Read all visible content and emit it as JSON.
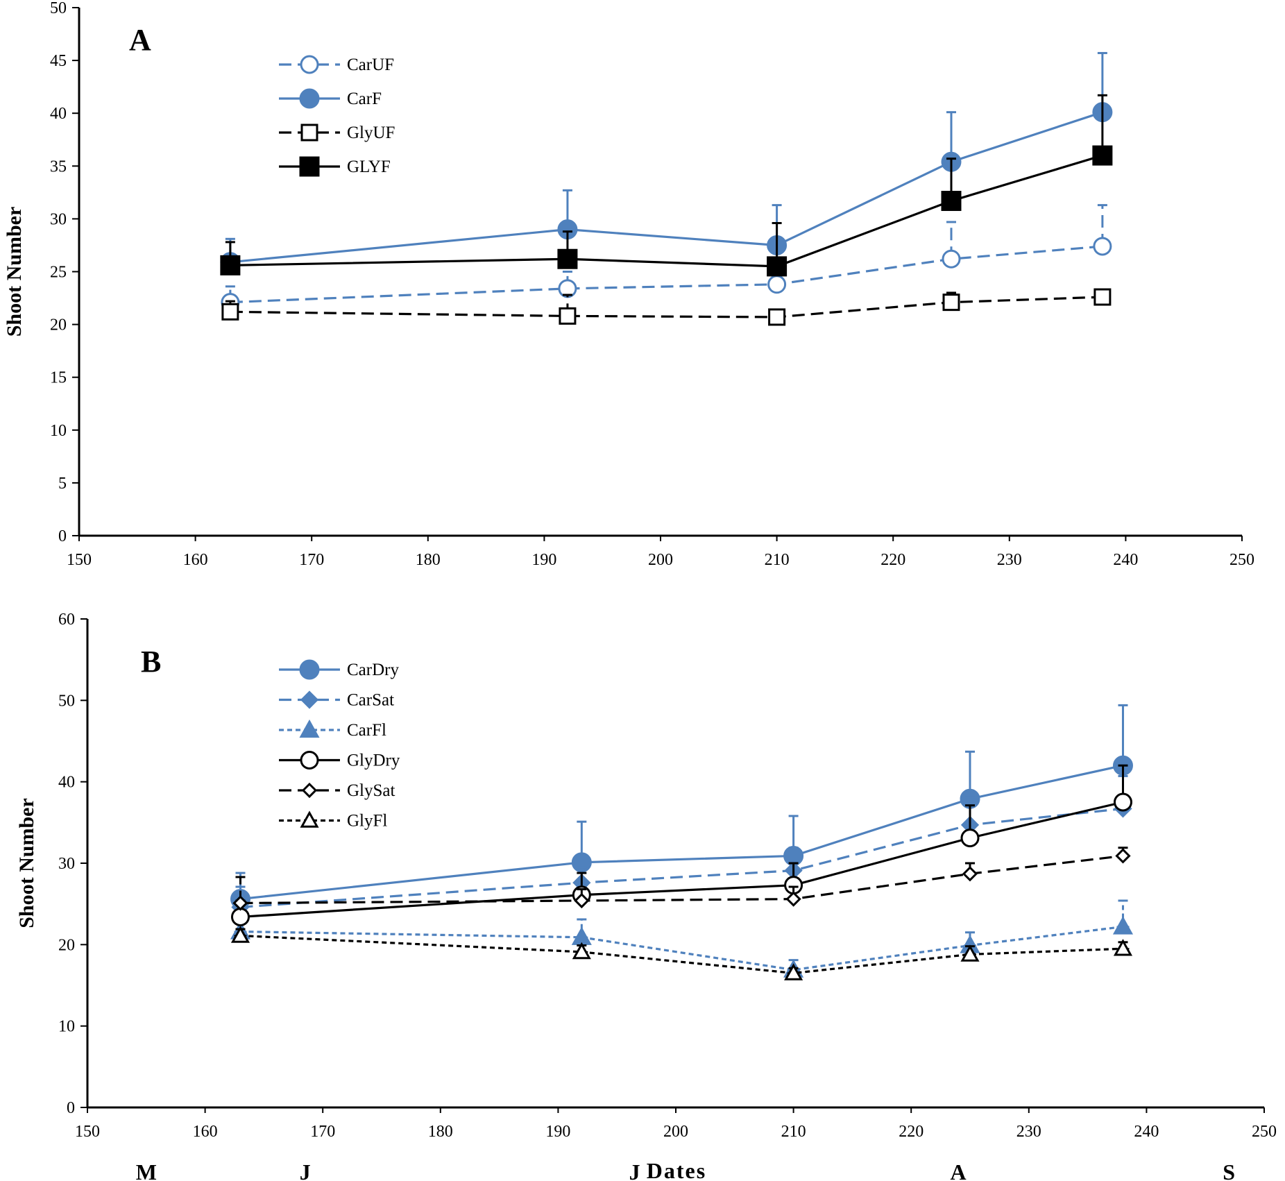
{
  "chart_data": [
    {
      "type": "line",
      "panel_label": "A",
      "ylabel": "Shoot Number",
      "xlabel": "",
      "xlim": [
        150,
        250
      ],
      "ylim": [
        0,
        50
      ],
      "x_ticks": [
        "150",
        "160",
        "170",
        "180",
        "190",
        "200",
        "210",
        "220",
        "230",
        "240",
        "250"
      ],
      "y_ticks": [
        "0",
        "5",
        "10",
        "15",
        "20",
        "25",
        "30",
        "35",
        "40",
        "45",
        "50"
      ],
      "legend_position": "top-left",
      "x": [
        163,
        192,
        210,
        225,
        238
      ],
      "series": [
        {
          "name": "CarUF",
          "values": [
            22.1,
            23.4,
            23.8,
            26.2,
            27.4
          ],
          "err": [
            1.5,
            1.6,
            1.6,
            3.5,
            3.9
          ],
          "color": "#4f81bd",
          "dash": "dashed",
          "marker": "circle-open"
        },
        {
          "name": "CarF",
          "values": [
            25.9,
            29.0,
            27.5,
            35.4,
            40.1
          ],
          "err": [
            2.2,
            3.7,
            3.8,
            4.7,
            5.6
          ],
          "color": "#4f81bd",
          "dash": "solid",
          "marker": "circle"
        },
        {
          "name": "GlyUF",
          "values": [
            21.2,
            20.8,
            20.7,
            22.1,
            22.6
          ],
          "err": [
            1.0,
            2.0,
            0.5,
            0.9,
            0.5
          ],
          "color": "#000000",
          "dash": "dashed",
          "marker": "square-open"
        },
        {
          "name": "GLYF",
          "values": [
            25.6,
            26.2,
            25.5,
            31.7,
            36.0
          ],
          "err": [
            2.2,
            2.6,
            4.1,
            4.0,
            5.7
          ],
          "color": "#000000",
          "dash": "solid",
          "marker": "square"
        }
      ]
    },
    {
      "type": "line",
      "panel_label": "B",
      "ylabel": "Shoot Number",
      "xlabel": "Dates",
      "xlim": [
        150,
        250
      ],
      "ylim": [
        0,
        60
      ],
      "x_ticks": [
        "150",
        "160",
        "170",
        "180",
        "190",
        "200",
        "210",
        "220",
        "230",
        "240",
        "250"
      ],
      "y_ticks": [
        "0",
        "10",
        "20",
        "30",
        "40",
        "50",
        "60"
      ],
      "month_labels": [
        {
          "label": "M",
          "x": 155
        },
        {
          "label": "J",
          "x": 168.5
        },
        {
          "label": "J",
          "x": 196.5
        },
        {
          "label": "A",
          "x": 224
        },
        {
          "label": "S",
          "x": 247
        }
      ],
      "legend_position": "top-left",
      "x": [
        163,
        192,
        210,
        225,
        238
      ],
      "series": [
        {
          "name": "CarDry",
          "values": [
            25.6,
            30.1,
            30.9,
            37.9,
            42.0
          ],
          "err": [
            3.2,
            5.0,
            4.9,
            5.8,
            7.4
          ],
          "color": "#4f81bd",
          "dash": "solid",
          "marker": "circle"
        },
        {
          "name": "CarSat",
          "values": [
            24.6,
            27.6,
            29.1,
            34.7,
            36.7
          ],
          "err": [
            2.5,
            1.9,
            2.8,
            3.4,
            4.0
          ],
          "color": "#4f81bd",
          "dash": "dashed",
          "marker": "diamond"
        },
        {
          "name": "CarFl",
          "values": [
            21.6,
            20.9,
            16.9,
            19.9,
            22.2
          ],
          "err": [
            1.5,
            2.2,
            1.2,
            1.6,
            3.2
          ],
          "color": "#4f81bd",
          "dash": "short-dashed",
          "marker": "triangle"
        },
        {
          "name": "GlyDry",
          "values": [
            23.4,
            26.1,
            27.3,
            33.1,
            37.5
          ],
          "err": [
            2.0,
            2.7,
            2.7,
            4.0,
            4.5
          ],
          "color": "#000000",
          "dash": "solid",
          "marker": "circle-open"
        },
        {
          "name": "GlySat",
          "values": [
            25.1,
            25.4,
            25.6,
            28.7,
            30.9
          ],
          "err": [
            3.2,
            1.4,
            1.5,
            1.3,
            1.0
          ],
          "color": "#000000",
          "dash": "dashed",
          "marker": "diamond-open"
        },
        {
          "name": "GlyFl",
          "values": [
            21.1,
            19.1,
            16.5,
            18.8,
            19.5
          ],
          "err": [
            0.8,
            0.8,
            0.6,
            1.0,
            0.8
          ],
          "color": "#000000",
          "dash": "short-dashed",
          "marker": "triangle-open"
        }
      ]
    }
  ]
}
